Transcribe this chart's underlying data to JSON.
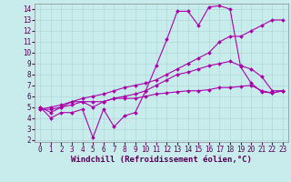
{
  "xlabel": "Windchill (Refroidissement éolien,°C)",
  "xlim": [
    -0.5,
    23.5
  ],
  "ylim": [
    1.8,
    14.5
  ],
  "xticks": [
    0,
    1,
    2,
    3,
    4,
    5,
    6,
    7,
    8,
    9,
    10,
    11,
    12,
    13,
    14,
    15,
    16,
    17,
    18,
    19,
    20,
    21,
    22,
    23
  ],
  "yticks": [
    2,
    3,
    4,
    5,
    6,
    7,
    8,
    9,
    10,
    11,
    12,
    13,
    14
  ],
  "background_color": "#c8ecec",
  "grid_color": "#b0d8d8",
  "line_color": "#aa00aa",
  "line1_y": [
    5.0,
    4.0,
    4.5,
    4.5,
    4.8,
    2.2,
    4.8,
    3.2,
    4.2,
    4.5,
    6.5,
    8.8,
    11.2,
    13.8,
    13.8,
    12.5,
    14.2,
    14.3,
    14.0,
    8.7,
    7.2,
    6.4,
    6.3,
    6.5
  ],
  "line2_y": [
    5.0,
    4.5,
    5.0,
    5.5,
    5.5,
    5.0,
    5.5,
    5.8,
    6.0,
    6.2,
    6.5,
    7.0,
    7.5,
    8.0,
    8.2,
    8.5,
    8.8,
    9.0,
    9.2,
    8.8,
    8.5,
    7.8,
    6.5,
    6.5
  ],
  "line3_y": [
    4.8,
    5.0,
    5.2,
    5.5,
    5.8,
    6.0,
    6.2,
    6.5,
    6.8,
    7.0,
    7.2,
    7.5,
    8.0,
    8.5,
    9.0,
    9.5,
    10.0,
    11.0,
    11.5,
    11.5,
    12.0,
    12.5,
    13.0,
    13.0
  ],
  "line4_y": [
    4.8,
    4.8,
    5.0,
    5.2,
    5.5,
    5.5,
    5.5,
    5.8,
    5.8,
    5.8,
    6.0,
    6.2,
    6.3,
    6.4,
    6.5,
    6.5,
    6.6,
    6.8,
    6.8,
    6.9,
    7.0,
    6.5,
    6.3,
    6.5
  ],
  "marker": "D",
  "markersize": 2.0,
  "linewidth": 0.8,
  "xlabel_fontsize": 6.5,
  "tick_fontsize": 5.5
}
